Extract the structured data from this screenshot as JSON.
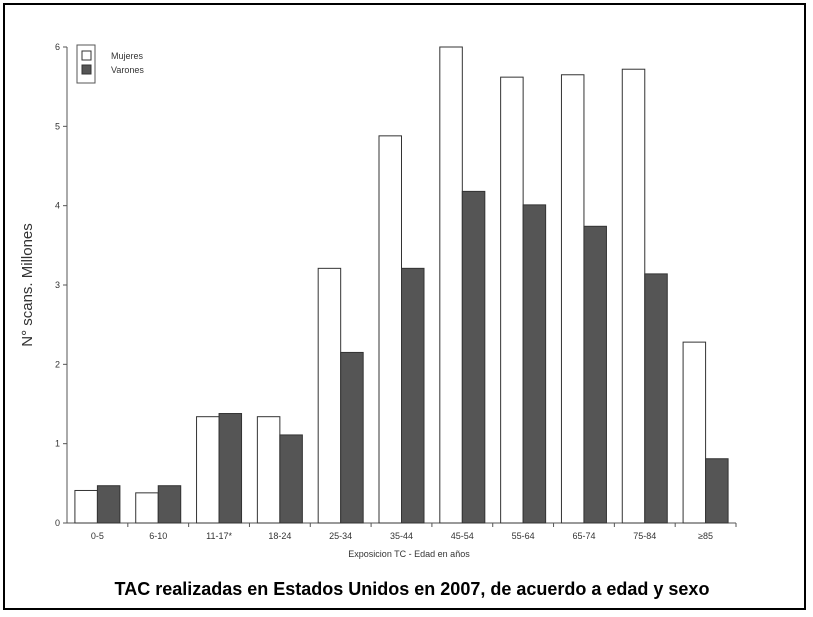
{
  "chart_data": {
    "type": "bar",
    "title": "TAC realizadas en Estados Unidos en 2007, de acuerdo a edad  y sexo",
    "xlabel": "Exposicion TC - Edad en años",
    "ylabel": "N° scans. Millones",
    "ylim": [
      0,
      6
    ],
    "yticks": [
      "0",
      "1",
      "2",
      "3",
      "4",
      "5",
      "6"
    ],
    "categories": [
      "0-5",
      "6-10",
      "11-17*",
      "18-24",
      "25-34",
      "35-44",
      "45-54",
      "55-64",
      "65-74",
      "75-84",
      "≥85"
    ],
    "series": [
      {
        "name": "Mujeres",
        "color": "#ffffff",
        "values": [
          0.41,
          0.38,
          1.34,
          1.34,
          3.21,
          4.88,
          6.0,
          5.62,
          5.65,
          5.72,
          2.28
        ]
      },
      {
        "name": "Varones",
        "color": "#555555",
        "values": [
          0.47,
          0.47,
          1.38,
          1.11,
          2.15,
          3.21,
          4.18,
          4.01,
          3.74,
          3.14,
          0.81
        ]
      }
    ],
    "legend": "top-left",
    "grid": false
  }
}
